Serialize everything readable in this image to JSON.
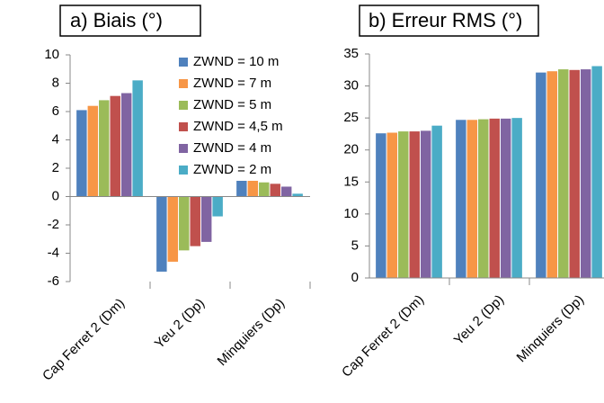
{
  "chart_data": [
    {
      "type": "bar",
      "title": "a) Biais (°)",
      "categories": [
        "Cap Ferret 2 (Dm)",
        "Yeu 2 (Dp)",
        "Minquiers (Dp)"
      ],
      "series": [
        {
          "name": "ZWND = 10 m",
          "color": "#4f81bd",
          "values": [
            6.1,
            -5.3,
            1.6
          ]
        },
        {
          "name": "ZWND = 7 m",
          "color": "#f79646",
          "values": [
            6.4,
            -4.6,
            1.5
          ]
        },
        {
          "name": "ZWND = 5 m",
          "color": "#9bbb59",
          "values": [
            6.8,
            -3.8,
            1.0
          ]
        },
        {
          "name": "ZWND = 4,5 m",
          "color": "#c0504d",
          "values": [
            7.1,
            -3.5,
            0.9
          ]
        },
        {
          "name": "ZWND = 4 m",
          "color": "#8064a2",
          "values": [
            7.3,
            -3.2,
            0.7
          ]
        },
        {
          "name": "ZWND = 2 m",
          "color": "#4bacc6",
          "values": [
            8.2,
            -1.4,
            0.2
          ]
        }
      ],
      "ylim": [
        -6,
        10
      ],
      "yticks": [
        -6,
        -4,
        -2,
        0,
        2,
        4,
        6,
        8,
        10
      ],
      "grid": false,
      "legend": "upper right"
    },
    {
      "type": "bar",
      "title": "b) Erreur RMS (°)",
      "categories": [
        "Cap Ferret 2 (Dm)",
        "Yeu 2 (Dp)",
        "Minquiers (Dp)"
      ],
      "series": [
        {
          "color": "#4f81bd",
          "values": [
            22.6,
            24.7,
            32.1
          ]
        },
        {
          "color": "#f79646",
          "values": [
            22.7,
            24.7,
            32.3
          ]
        },
        {
          "color": "#9bbb59",
          "values": [
            22.9,
            24.8,
            32.6
          ]
        },
        {
          "color": "#c0504d",
          "values": [
            22.9,
            24.9,
            32.5
          ]
        },
        {
          "color": "#8064a2",
          "values": [
            23.0,
            24.9,
            32.6
          ]
        },
        {
          "color": "#4bacc6",
          "values": [
            23.8,
            25.0,
            33.1
          ]
        }
      ],
      "ylim": [
        0,
        35
      ],
      "yticks": [
        0,
        5,
        10,
        15,
        20,
        25,
        30,
        35
      ],
      "grid": false
    }
  ]
}
